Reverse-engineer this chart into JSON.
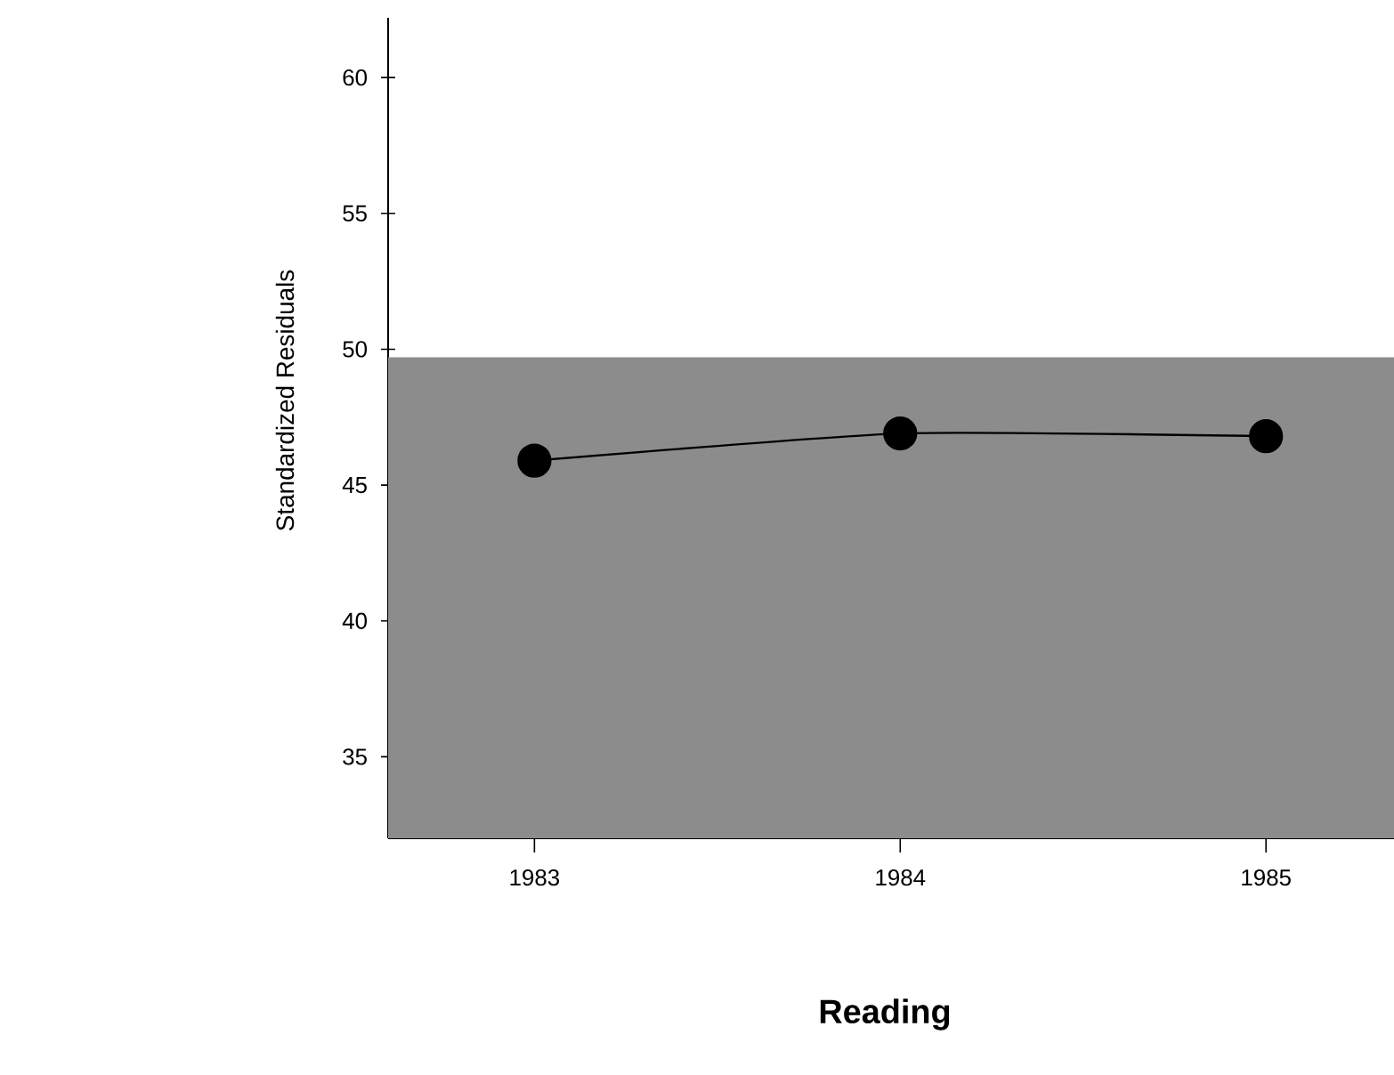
{
  "chart_data": {
    "type": "line",
    "xlabel": "Reading",
    "ylabel": "Standardized Residuals",
    "categories": [
      "1983",
      "1984",
      "1985"
    ],
    "series": [
      {
        "color": "#000000",
        "values": [
          45.9,
          46.9,
          46.8
        ]
      }
    ],
    "ylim": [
      32.0,
      62.2
    ],
    "yticks": [
      35,
      40,
      45,
      50,
      55,
      60
    ],
    "bands": [
      {
        "axis": "y",
        "from": 32.0,
        "to": 49.7,
        "color": "#8c8c8c"
      }
    ],
    "marker": "circle",
    "line_style": "solid",
    "grid": false
  }
}
